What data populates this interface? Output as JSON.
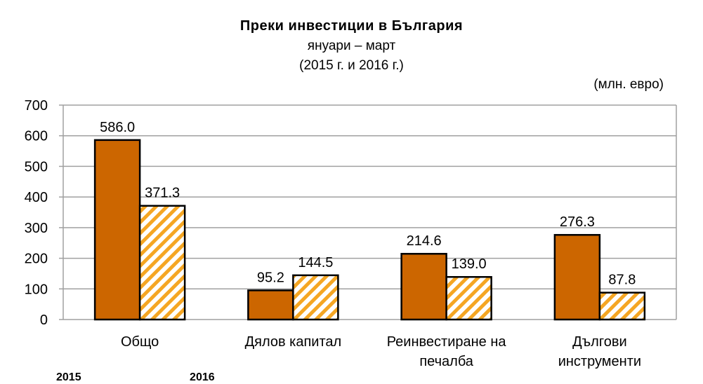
{
  "title": "Преки  инвестиции в България",
  "subtitle_line1": "януари – март",
  "subtitle_line2": "(2015 г. и 2016 г.)",
  "unit_label": "(млн. евро)",
  "colors": {
    "series_2015_fill": "#cc6600",
    "series_2016_stripe": "#f5a623",
    "bar_border": "#000000",
    "grid": "#a0a0a0"
  },
  "legend": {
    "items": [
      {
        "label": "2015",
        "style": "solid"
      },
      {
        "label": "2016",
        "style": "hatched"
      }
    ]
  },
  "chart_data": {
    "type": "bar",
    "title": "Преки  инвестиции в България",
    "subtitle": "януари – март (2015 г. и 2016 г.)",
    "unit": "(млн. евро)",
    "categories": [
      "Общо",
      "Дялов капитал",
      "Реинвестиране на печалба",
      "Дългови инструменти"
    ],
    "category_lines": [
      [
        "Общо"
      ],
      [
        "Дялов капитал"
      ],
      [
        "Реинвестиране на",
        "печалба"
      ],
      [
        "Дългови",
        "инструменти"
      ]
    ],
    "series": [
      {
        "name": "2015",
        "values": [
          586.0,
          95.2,
          214.6,
          276.3
        ],
        "labels": [
          "586.0",
          "95.2",
          "214.6",
          "276.3"
        ]
      },
      {
        "name": "2016",
        "values": [
          371.3,
          144.5,
          139.0,
          87.8
        ],
        "labels": [
          "371.3",
          "144.5",
          "139.0",
          "87.8"
        ]
      }
    ],
    "xlabel": "",
    "ylabel": "",
    "ylim": [
      0,
      700
    ],
    "yticks": [
      0,
      100,
      200,
      300,
      400,
      500,
      600,
      700
    ],
    "grid": true,
    "legend_position": "bottom"
  }
}
